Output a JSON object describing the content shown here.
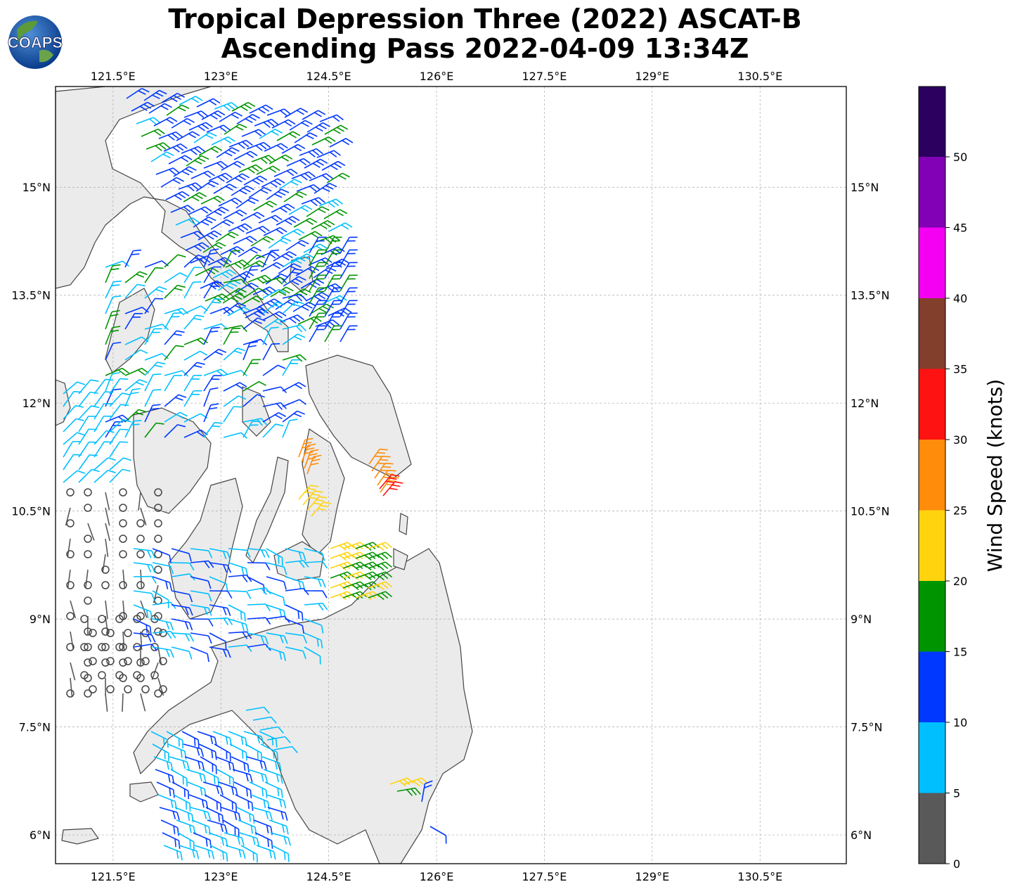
{
  "header": {
    "title_line1": "Tropical Depression Three (2022) ASCAT-B",
    "title_line2": "Ascending Pass 2022-04-09 13:34Z",
    "logo_text": "COAPS"
  },
  "map": {
    "lon_labels": [
      "121.5°E",
      "123°E",
      "124.5°E",
      "126°E",
      "127.5°E",
      "129°E",
      "130.5°E"
    ],
    "lat_labels": [
      "15°N",
      "13.5°N",
      "12°N",
      "10.5°N",
      "9°N",
      "7.5°N",
      "6°N"
    ],
    "lon_range": [
      120.7,
      131.7
    ],
    "lat_range": [
      5.6,
      16.4
    ],
    "grid": true,
    "land_color": "#ebebeb",
    "coast_color": "#444444"
  },
  "colorbar": {
    "title": "Wind Speed (knots)",
    "ticks": [
      "0",
      "5",
      "10",
      "15",
      "20",
      "25",
      "30",
      "35",
      "40",
      "45",
      "50"
    ],
    "colors": [
      "#595959",
      "#00bfff",
      "#0038ff",
      "#009400",
      "#ffd40f",
      "#ff8c0a",
      "#ff1212",
      "#823f2b",
      "#f500f2",
      "#8200b5",
      "#2b005e"
    ]
  }
}
